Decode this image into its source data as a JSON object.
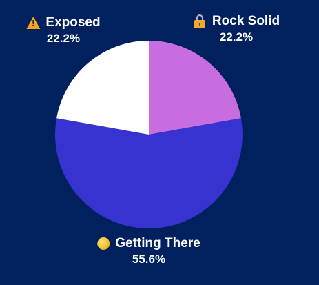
{
  "chart_data": {
    "type": "pie",
    "title": "",
    "slices": [
      {
        "label": "Rock Solid",
        "value": 22.2,
        "display": "22.2%",
        "color": "#c86de0",
        "icon": "lock-icon"
      },
      {
        "label": "Getting There",
        "value": 55.6,
        "display": "55.6%",
        "color": "#3633d1",
        "icon": "coin-icon"
      },
      {
        "label": "Exposed",
        "value": 22.2,
        "display": "22.2%",
        "color": "#ffffff",
        "icon": "warning-icon"
      }
    ],
    "start_angle": "12 o'clock",
    "direction": "clockwise"
  },
  "colors": {
    "background": "#00205e",
    "label_text": "#ffffff"
  }
}
